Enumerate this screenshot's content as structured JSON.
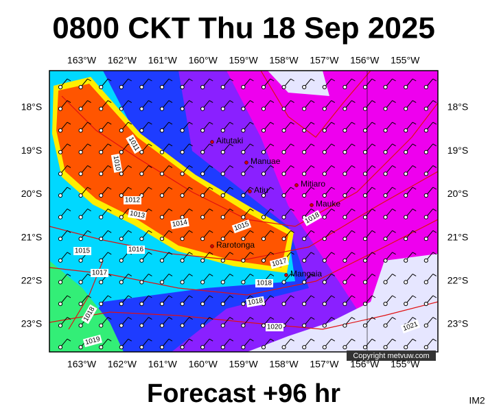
{
  "title": "0800 CKT Thu 18 Sep 2025",
  "footer": "Forecast +96 hr",
  "image_id": "IM2",
  "map": {
    "lon_labels": [
      "163°W",
      "162°W",
      "161°W",
      "160°W",
      "159°W",
      "158°W",
      "157°W",
      "156°W",
      "155°W"
    ],
    "lat_labels": [
      "18°S",
      "19°S",
      "20°S",
      "21°S",
      "22°S",
      "23°S"
    ],
    "places": [
      "Aitutaki",
      "Manuae",
      "Atiu",
      "Mitiaro",
      "Mauke",
      "Rarotonga",
      "Mangaia"
    ],
    "isobar_labels": [
      "1011",
      "1010",
      "1012",
      "1013",
      "1014",
      "1015",
      "1016",
      "1015",
      "1017",
      "1017",
      "1018",
      "1018",
      "1018",
      "1020",
      "1021",
      "1018",
      "1019"
    ],
    "copyright": "Copyright metvuw.com"
  }
}
